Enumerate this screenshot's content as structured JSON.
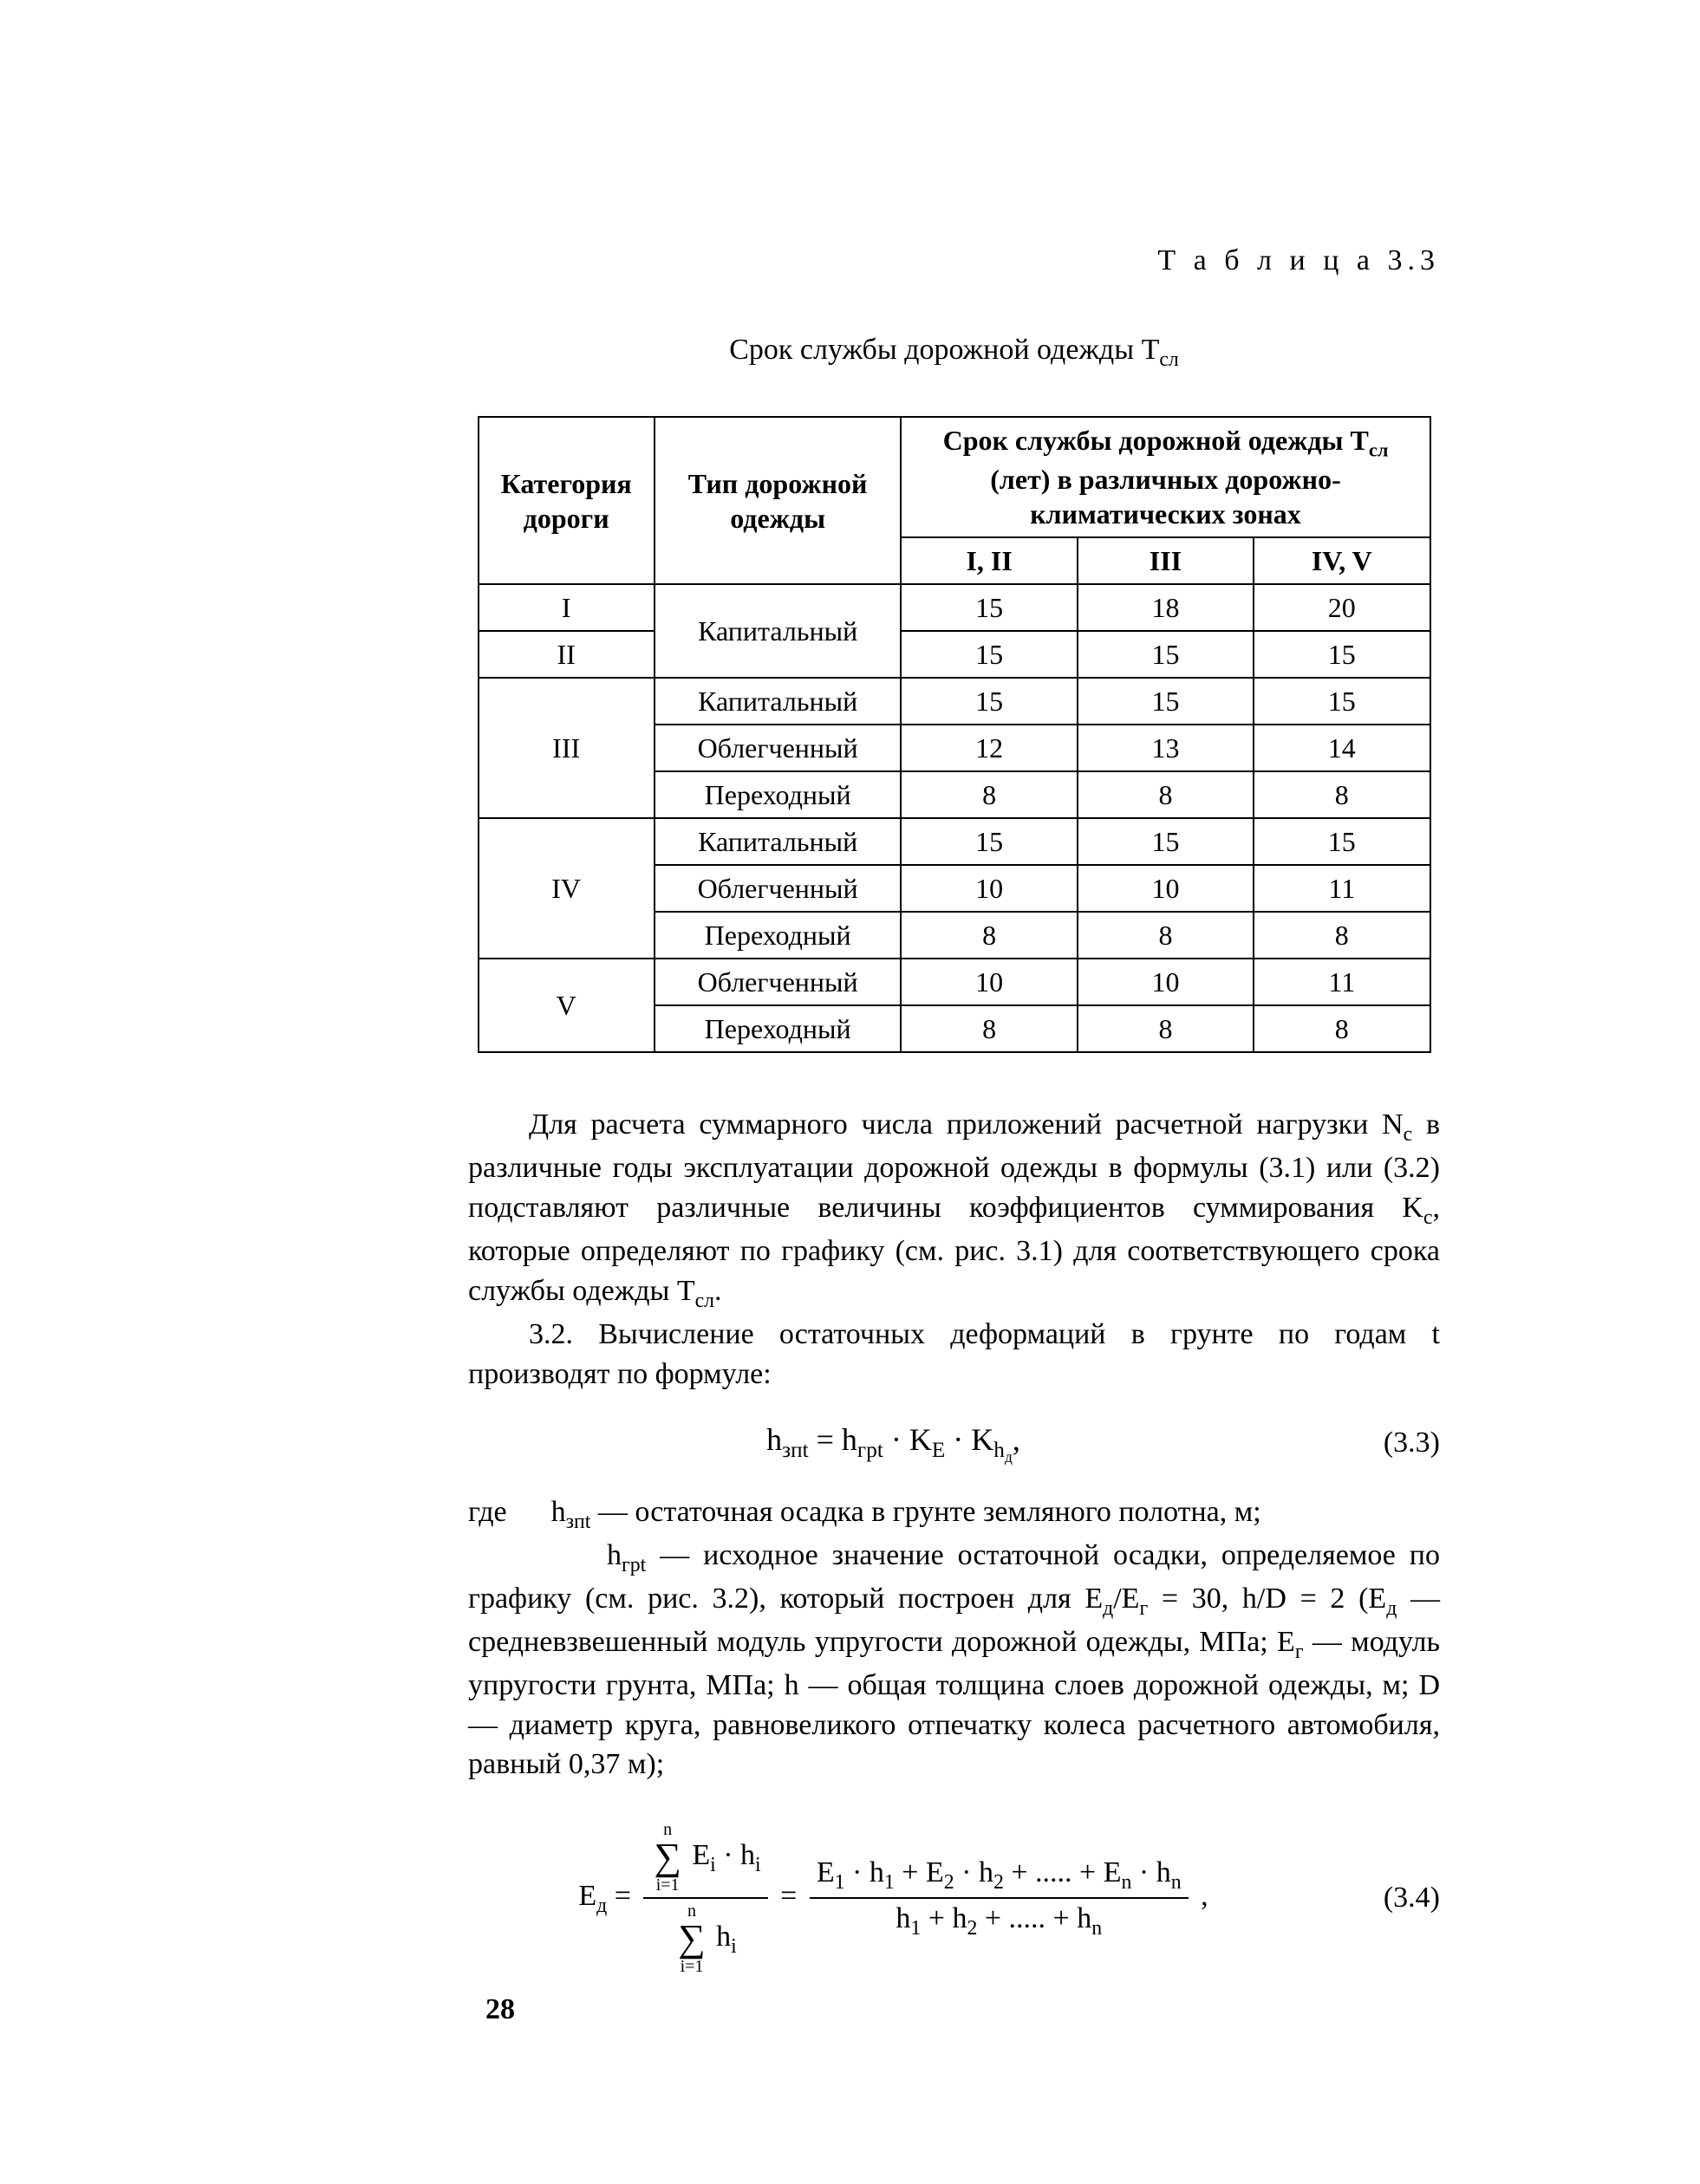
{
  "table_label": "Т а б л и ц а 3.3",
  "table_caption_html": "Срок службы дорожной одежды T<sub>сл</sub>",
  "table": {
    "col_cat": "Категория дороги",
    "col_type": "Тип дорожной одежды",
    "col_zone_header_html": "Срок службы дорожной одежды T<sub>сл</sub> (лет) в различных дорожно-климатических зонах",
    "zone_labels": [
      "I, II",
      "III",
      "IV, V"
    ],
    "rows": [
      {
        "cat": "I",
        "type": "Капитальный",
        "vals": [
          "15",
          "18",
          "20"
        ],
        "cat_rowspan": 1,
        "type_rowspan": 2,
        "show_cat": true,
        "show_type": true
      },
      {
        "cat": "II",
        "type": "",
        "vals": [
          "15",
          "15",
          "15"
        ],
        "cat_rowspan": 1,
        "type_rowspan": 0,
        "show_cat": true,
        "show_type": false
      },
      {
        "cat": "III",
        "type": "Капитальный",
        "vals": [
          "15",
          "15",
          "15"
        ],
        "cat_rowspan": 3,
        "type_rowspan": 1,
        "show_cat": true,
        "show_type": true
      },
      {
        "cat": "",
        "type": "Облегченный",
        "vals": [
          "12",
          "13",
          "14"
        ],
        "cat_rowspan": 0,
        "type_rowspan": 1,
        "show_cat": false,
        "show_type": true
      },
      {
        "cat": "",
        "type": "Переходный",
        "vals": [
          "8",
          "8",
          "8"
        ],
        "cat_rowspan": 0,
        "type_rowspan": 1,
        "show_cat": false,
        "show_type": true
      },
      {
        "cat": "IV",
        "type": "Капитальный",
        "vals": [
          "15",
          "15",
          "15"
        ],
        "cat_rowspan": 3,
        "type_rowspan": 1,
        "show_cat": true,
        "show_type": true
      },
      {
        "cat": "",
        "type": "Облегченный",
        "vals": [
          "10",
          "10",
          "11"
        ],
        "cat_rowspan": 0,
        "type_rowspan": 1,
        "show_cat": false,
        "show_type": true
      },
      {
        "cat": "",
        "type": "Переходный",
        "vals": [
          "8",
          "8",
          "8"
        ],
        "cat_rowspan": 0,
        "type_rowspan": 1,
        "show_cat": false,
        "show_type": true
      },
      {
        "cat": "V",
        "type": "Облегченный",
        "vals": [
          "10",
          "10",
          "11"
        ],
        "cat_rowspan": 2,
        "type_rowspan": 1,
        "show_cat": true,
        "show_type": true
      },
      {
        "cat": "",
        "type": "Переходный",
        "vals": [
          "8",
          "8",
          "8"
        ],
        "cat_rowspan": 0,
        "type_rowspan": 1,
        "show_cat": false,
        "show_type": true
      }
    ]
  },
  "para1_html": "Для расчета суммарного числа приложений расчетной нагрузки N<sub>с</sub> в различные годы эксплуатации дорожной одежды в формулы (3.1) или (3.2) подставляют различные величины коэффициентов суммирования K<sub>с</sub>, которые определяют по графику (см. рис. 3.1) для соответствующего срока службы одежды T<sub>сл</sub>.",
  "para2_html": "3.2. Вычисление остаточных деформаций в грунте по годам t производят по формуле:",
  "formula1": {
    "html": "h<sub>зпt</sub> = h<sub>грt</sub> · K<sub>E</sub> · K<sub>h<sub>д</sub></sub>,",
    "num": "(3.3)"
  },
  "defs_html": [
    "где&nbsp;&nbsp;&nbsp;&nbsp;&nbsp;&nbsp;h<sub>зпt</sub> — остаточная осадка в грунте земляного полотна, м;",
    "h<sub>грt</sub> — исходное значение остаточной осадки, определяемое по графику (см. рис. 3.2), который построен для E<sub>д</sub>/E<sub>г</sub>&nbsp;=&nbsp;30, h/D&nbsp;=&nbsp;2 (E<sub>д</sub> — средневзвешенный модуль упругости дорожной одежды, МПа; E<sub>г</sub> — модуль упругости грунта, МПа; h — общая толщина слоев дорожной одежды, м; D — диаметр круга, равновеликого отпечатку колеса расчетного автомобиля, равный 0,37 м);"
  ],
  "formula2": {
    "lhs_html": "E<sub>д</sub> =",
    "sum_top": "n",
    "sum_bot": "i=1",
    "num1_html": "E<sub>i</sub> · h<sub>i</sub>",
    "den1_html": "h<sub>i</sub>",
    "eq": " = ",
    "num2_html": "E<sub>1</sub> · h<sub>1</sub> + E<sub>2</sub> · h<sub>2</sub> + ..... + E<sub>n</sub> · h<sub>n</sub>",
    "den2_html": "h<sub>1</sub> + h<sub>2</sub> + ..... + h<sub>n</sub>",
    "tail": ",",
    "num": "(3.4)"
  },
  "page_number": "28"
}
